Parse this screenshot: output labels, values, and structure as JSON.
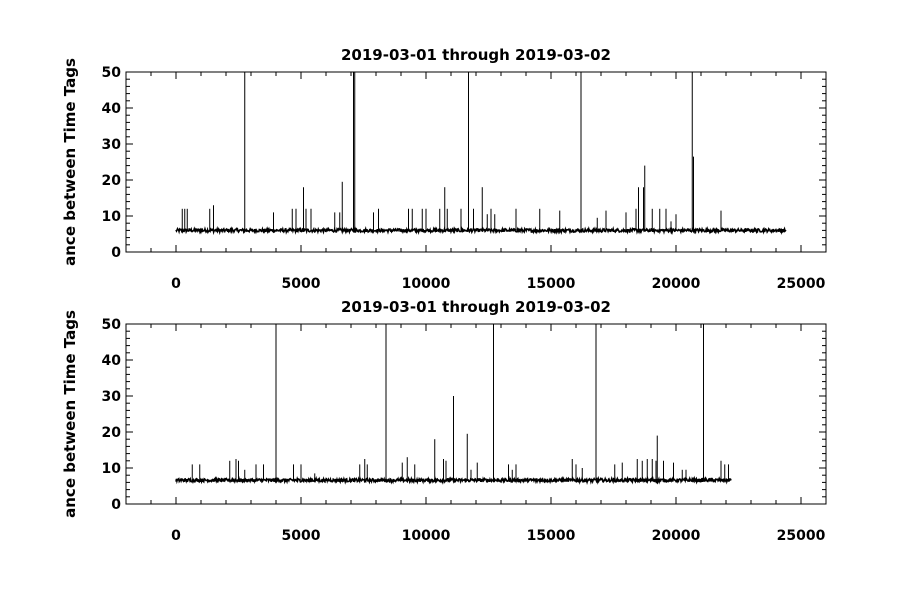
{
  "chart_data": [
    {
      "type": "line",
      "title": "2019-03-01 through 2019-03-02",
      "ylabel": "ance between Time Tags",
      "xlabel": "",
      "xlim": [
        -2000,
        26000
      ],
      "ylim": [
        0,
        50
      ],
      "xticks": [
        0,
        5000,
        10000,
        15000,
        20000,
        25000
      ],
      "xtick_labels": [
        "0",
        "5000",
        "10000",
        "15000",
        "20000",
        "25000"
      ],
      "yticks": [
        0,
        10,
        20,
        30,
        40,
        50
      ],
      "ytick_labels": [
        "0",
        "10",
        "20",
        "30",
        "40",
        "50"
      ],
      "grid": false,
      "series": [
        {
          "baseline": 6,
          "x_range": [
            0,
            24400
          ],
          "spikes": [
            {
              "x": 250,
              "y": 12
            },
            {
              "x": 350,
              "y": 12
            },
            {
              "x": 450,
              "y": 12
            },
            {
              "x": 1350,
              "y": 12
            },
            {
              "x": 1500,
              "y": 13
            },
            {
              "x": 2750,
              "y": 50
            },
            {
              "x": 3900,
              "y": 11
            },
            {
              "x": 4650,
              "y": 12
            },
            {
              "x": 4800,
              "y": 12
            },
            {
              "x": 5100,
              "y": 18
            },
            {
              "x": 5200,
              "y": 12
            },
            {
              "x": 5400,
              "y": 12
            },
            {
              "x": 6350,
              "y": 11
            },
            {
              "x": 6550,
              "y": 11
            },
            {
              "x": 6650,
              "y": 19.5
            },
            {
              "x": 7100,
              "y": 50
            },
            {
              "x": 7150,
              "y": 50
            },
            {
              "x": 7900,
              "y": 11
            },
            {
              "x": 8100,
              "y": 12
            },
            {
              "x": 9300,
              "y": 12
            },
            {
              "x": 9450,
              "y": 12
            },
            {
              "x": 9850,
              "y": 12
            },
            {
              "x": 10000,
              "y": 12
            },
            {
              "x": 10550,
              "y": 12
            },
            {
              "x": 10750,
              "y": 18
            },
            {
              "x": 10850,
              "y": 12
            },
            {
              "x": 11400,
              "y": 12
            },
            {
              "x": 11700,
              "y": 50
            },
            {
              "x": 11900,
              "y": 12
            },
            {
              "x": 12250,
              "y": 18
            },
            {
              "x": 12450,
              "y": 10.5
            },
            {
              "x": 12600,
              "y": 12
            },
            {
              "x": 12750,
              "y": 10.5
            },
            {
              "x": 13600,
              "y": 12
            },
            {
              "x": 14550,
              "y": 12
            },
            {
              "x": 15350,
              "y": 11.5
            },
            {
              "x": 16200,
              "y": 50
            },
            {
              "x": 16850,
              "y": 9.5
            },
            {
              "x": 17200,
              "y": 11.5
            },
            {
              "x": 18000,
              "y": 11
            },
            {
              "x": 18400,
              "y": 12
            },
            {
              "x": 18500,
              "y": 18
            },
            {
              "x": 18700,
              "y": 18
            },
            {
              "x": 18750,
              "y": 24
            },
            {
              "x": 19050,
              "y": 12
            },
            {
              "x": 19350,
              "y": 12
            },
            {
              "x": 19600,
              "y": 12
            },
            {
              "x": 19800,
              "y": 8.5
            },
            {
              "x": 20000,
              "y": 10.5
            },
            {
              "x": 20650,
              "y": 50
            },
            {
              "x": 20700,
              "y": 26.5
            },
            {
              "x": 21800,
              "y": 11.5
            }
          ]
        }
      ]
    },
    {
      "type": "line",
      "title": "2019-03-01 through 2019-03-02",
      "ylabel": "ance between Time Tags",
      "xlabel": "",
      "xlim": [
        -2000,
        26000
      ],
      "ylim": [
        0,
        50
      ],
      "xticks": [
        0,
        5000,
        10000,
        15000,
        20000,
        25000
      ],
      "xtick_labels": [
        "0",
        "5000",
        "10000",
        "15000",
        "20000",
        "25000"
      ],
      "yticks": [
        0,
        10,
        20,
        30,
        40,
        50
      ],
      "ytick_labels": [
        "0",
        "10",
        "20",
        "30",
        "40",
        "50"
      ],
      "grid": false,
      "series": [
        {
          "baseline": 6.6,
          "x_range": [
            0,
            22200
          ],
          "spikes": [
            {
              "x": 650,
              "y": 11
            },
            {
              "x": 950,
              "y": 11
            },
            {
              "x": 2150,
              "y": 12
            },
            {
              "x": 2400,
              "y": 12.5
            },
            {
              "x": 2500,
              "y": 12
            },
            {
              "x": 2750,
              "y": 9.5
            },
            {
              "x": 3200,
              "y": 11
            },
            {
              "x": 3500,
              "y": 11
            },
            {
              "x": 4000,
              "y": 50
            },
            {
              "x": 4700,
              "y": 11
            },
            {
              "x": 5000,
              "y": 11
            },
            {
              "x": 5550,
              "y": 8.5
            },
            {
              "x": 7350,
              "y": 11
            },
            {
              "x": 7550,
              "y": 12.5
            },
            {
              "x": 7650,
              "y": 11
            },
            {
              "x": 8400,
              "y": 50
            },
            {
              "x": 9050,
              "y": 11.5
            },
            {
              "x": 9250,
              "y": 13
            },
            {
              "x": 9550,
              "y": 11
            },
            {
              "x": 10350,
              "y": 18
            },
            {
              "x": 10700,
              "y": 12.5
            },
            {
              "x": 10800,
              "y": 12
            },
            {
              "x": 11100,
              "y": 30
            },
            {
              "x": 11650,
              "y": 19.5
            },
            {
              "x": 11800,
              "y": 9.5
            },
            {
              "x": 12050,
              "y": 11.5
            },
            {
              "x": 12700,
              "y": 50
            },
            {
              "x": 13300,
              "y": 11
            },
            {
              "x": 13450,
              "y": 9.5
            },
            {
              "x": 13600,
              "y": 11
            },
            {
              "x": 15850,
              "y": 12.5
            },
            {
              "x": 16000,
              "y": 11
            },
            {
              "x": 16250,
              "y": 10
            },
            {
              "x": 16800,
              "y": 50
            },
            {
              "x": 17550,
              "y": 11
            },
            {
              "x": 17850,
              "y": 11.5
            },
            {
              "x": 18450,
              "y": 12.5
            },
            {
              "x": 18650,
              "y": 12
            },
            {
              "x": 18850,
              "y": 12.5
            },
            {
              "x": 19050,
              "y": 12.5
            },
            {
              "x": 19200,
              "y": 12
            },
            {
              "x": 19250,
              "y": 19
            },
            {
              "x": 19500,
              "y": 12
            },
            {
              "x": 19900,
              "y": 11.5
            },
            {
              "x": 20250,
              "y": 9.5
            },
            {
              "x": 20400,
              "y": 9.5
            },
            {
              "x": 21100,
              "y": 50
            },
            {
              "x": 21800,
              "y": 12
            },
            {
              "x": 21950,
              "y": 11
            },
            {
              "x": 22100,
              "y": 11
            }
          ]
        }
      ]
    }
  ]
}
